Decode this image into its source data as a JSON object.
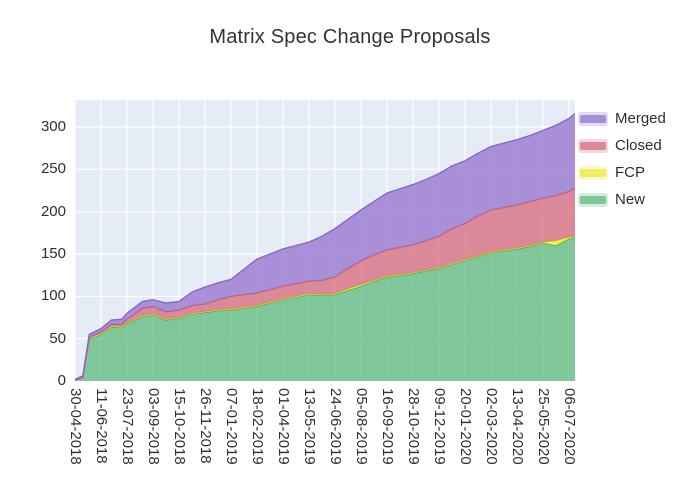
{
  "chart_data": {
    "type": "area",
    "stacked": true,
    "title": "Matrix Spec Change Proposals",
    "xlabel": "",
    "ylabel": "",
    "grid": true,
    "plot_bg": "#e5ecf6",
    "grid_color": "#ffffff",
    "legend_position": "right",
    "legend_order": [
      "Merged",
      "Closed",
      "FCP",
      "New"
    ],
    "y_ticks": [
      0,
      50,
      100,
      150,
      200,
      250,
      300
    ],
    "ylim": [
      0,
      332
    ],
    "x_tick_labels": [
      "30-04-2018",
      "11-06-2018",
      "23-07-2018",
      "03-09-2018",
      "15-10-2018",
      "26-11-2018",
      "07-01-2019",
      "18-02-2019",
      "01-04-2019",
      "13-05-2019",
      "24-06-2019",
      "05-08-2019",
      "16-09-2019",
      "28-10-2019",
      "09-12-2019",
      "20-01-2020",
      "02-03-2020",
      "13-04-2020",
      "25-05-2020",
      "06-07-2020"
    ],
    "series": [
      {
        "name": "New",
        "line": "#47a964",
        "fill": "rgba(87,184,119,0.72)",
        "swatch": "#7fc79b"
      },
      {
        "name": "FCP",
        "line": "#dcd42e",
        "fill": "rgba(245,238,46,0.78)",
        "swatch": "#f1ed60"
      },
      {
        "name": "Closed",
        "line": "#c75c6e",
        "fill": "rgba(215,98,115,0.72)",
        "swatch": "#db8998"
      },
      {
        "name": "Merged",
        "line": "#8a66c8",
        "fill": "rgba(152,120,208,0.80)",
        "swatch": "#a78fd8"
      }
    ],
    "samples": [
      {
        "date": "30-04-2018",
        "t": 0,
        "New": 1,
        "FCP": 0,
        "Closed": 0,
        "Merged": 1
      },
      {
        "date": "13-05-2018",
        "t": 0.3,
        "New": 4,
        "FCP": 0,
        "Closed": 0,
        "Merged": 2
      },
      {
        "date": "23-05-2018",
        "t": 0.55,
        "New": 50,
        "FCP": 1,
        "Closed": 1,
        "Merged": 3
      },
      {
        "date": "11-06-2018",
        "t": 1,
        "New": 55,
        "FCP": 1,
        "Closed": 2,
        "Merged": 4
      },
      {
        "date": "28-06-2018",
        "t": 1.4,
        "New": 64,
        "FCP": 1,
        "Closed": 2,
        "Merged": 5
      },
      {
        "date": "14-07-2018",
        "t": 1.8,
        "New": 63,
        "FCP": 1,
        "Closed": 3,
        "Merged": 6
      },
      {
        "date": "23-07-2018",
        "t": 2,
        "New": 68,
        "FCP": 1,
        "Closed": 4,
        "Merged": 7
      },
      {
        "date": "17-08-2018",
        "t": 2.6,
        "New": 76,
        "FCP": 1,
        "Closed": 9,
        "Merged": 8
      },
      {
        "date": "03-09-2018",
        "t": 3,
        "New": 78,
        "FCP": 1,
        "Closed": 9,
        "Merged": 8
      },
      {
        "date": "24-09-2018",
        "t": 3.5,
        "New": 72,
        "FCP": 1,
        "Closed": 9,
        "Merged": 10
      },
      {
        "date": "15-10-2018",
        "t": 4,
        "New": 74,
        "FCP": 1,
        "Closed": 9,
        "Merged": 10
      },
      {
        "date": "05-11-2018",
        "t": 4.5,
        "New": 79,
        "FCP": 1,
        "Closed": 9,
        "Merged": 16
      },
      {
        "date": "26-11-2018",
        "t": 5,
        "New": 81,
        "FCP": 1,
        "Closed": 9,
        "Merged": 20
      },
      {
        "date": "17-12-2018",
        "t": 5.5,
        "New": 83,
        "FCP": 1,
        "Closed": 12,
        "Merged": 20
      },
      {
        "date": "07-01-2019",
        "t": 6,
        "New": 84,
        "FCP": 1,
        "Closed": 15,
        "Merged": 20
      },
      {
        "date": "28-01-2019",
        "t": 6.5,
        "New": 86,
        "FCP": 1,
        "Closed": 15,
        "Merged": 30
      },
      {
        "date": "18-02-2019",
        "t": 7,
        "New": 88,
        "FCP": 1,
        "Closed": 15,
        "Merged": 40
      },
      {
        "date": "11-03-2019",
        "t": 7.5,
        "New": 92,
        "FCP": 1,
        "Closed": 15,
        "Merged": 42
      },
      {
        "date": "01-04-2019",
        "t": 8,
        "New": 96,
        "FCP": 1,
        "Closed": 15,
        "Merged": 44
      },
      {
        "date": "22-04-2019",
        "t": 8.5,
        "New": 99,
        "FCP": 1,
        "Closed": 15,
        "Merged": 45
      },
      {
        "date": "13-05-2019",
        "t": 9,
        "New": 102,
        "FCP": 1,
        "Closed": 15,
        "Merged": 46
      },
      {
        "date": "03-06-2019",
        "t": 9.5,
        "New": 101,
        "FCP": 1,
        "Closed": 17,
        "Merged": 52
      },
      {
        "date": "24-06-2019",
        "t": 10,
        "New": 102,
        "FCP": 1,
        "Closed": 20,
        "Merged": 57
      },
      {
        "date": "15-07-2019",
        "t": 10.5,
        "New": 107,
        "FCP": 2,
        "Closed": 24,
        "Merged": 58
      },
      {
        "date": "05-08-2019",
        "t": 11,
        "New": 112,
        "FCP": 2,
        "Closed": 28,
        "Merged": 60
      },
      {
        "date": "26-08-2019",
        "t": 11.5,
        "New": 118,
        "FCP": 1,
        "Closed": 30,
        "Merged": 63
      },
      {
        "date": "16-09-2019",
        "t": 12,
        "New": 123,
        "FCP": 1,
        "Closed": 31,
        "Merged": 67
      },
      {
        "date": "07-10-2019",
        "t": 12.5,
        "New": 125,
        "FCP": 1,
        "Closed": 32,
        "Merged": 69
      },
      {
        "date": "28-10-2019",
        "t": 13,
        "New": 127,
        "FCP": 1,
        "Closed": 33,
        "Merged": 71
      },
      {
        "date": "18-11-2019",
        "t": 13.5,
        "New": 130,
        "FCP": 1,
        "Closed": 35,
        "Merged": 72
      },
      {
        "date": "09-12-2019",
        "t": 14,
        "New": 133,
        "FCP": 1,
        "Closed": 37,
        "Merged": 74
      },
      {
        "date": "30-12-2019",
        "t": 14.5,
        "New": 138,
        "FCP": 1,
        "Closed": 41,
        "Merged": 74
      },
      {
        "date": "20-01-2020",
        "t": 15,
        "New": 142,
        "FCP": 1,
        "Closed": 43,
        "Merged": 74
      },
      {
        "date": "10-02-2020",
        "t": 15.5,
        "New": 147,
        "FCP": 1,
        "Closed": 47,
        "Merged": 74
      },
      {
        "date": "02-03-2020",
        "t": 16,
        "New": 151,
        "FCP": 1,
        "Closed": 50,
        "Merged": 75
      },
      {
        "date": "23-03-2020",
        "t": 16.5,
        "New": 154,
        "FCP": 1,
        "Closed": 50,
        "Merged": 76
      },
      {
        "date": "13-04-2020",
        "t": 17,
        "New": 156,
        "FCP": 1,
        "Closed": 51,
        "Merged": 77
      },
      {
        "date": "04-05-2020",
        "t": 17.5,
        "New": 159,
        "FCP": 1,
        "Closed": 52,
        "Merged": 78
      },
      {
        "date": "25-05-2020",
        "t": 18,
        "New": 163,
        "FCP": 1,
        "Closed": 52,
        "Merged": 80
      },
      {
        "date": "15-06-2020",
        "t": 18.5,
        "New": 160,
        "FCP": 6,
        "Closed": 53,
        "Merged": 83
      },
      {
        "date": "06-07-2020",
        "t": 19,
        "New": 168,
        "FCP": 2,
        "Closed": 54,
        "Merged": 86
      },
      {
        "date": "17-07-2020",
        "t": 19.25,
        "New": 170,
        "FCP": 1,
        "Closed": 57,
        "Merged": 88
      }
    ]
  }
}
